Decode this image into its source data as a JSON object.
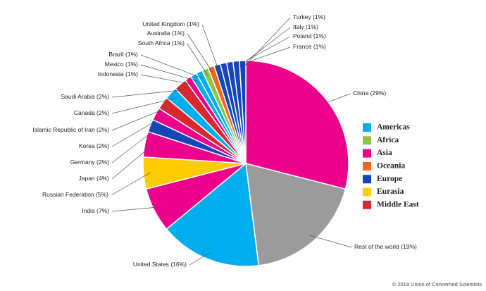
{
  "chart_data": {
    "type": "pie",
    "categories": [
      "China",
      "Rest of the world",
      "United States",
      "India",
      "Russian Federation",
      "Japan",
      "Germany",
      "Korea",
      "Islamic Republic of Iran",
      "Canada",
      "Saudi Arabia",
      "Indonesia",
      "Mexico",
      "Brazil",
      "South Africa",
      "Australia",
      "United Kingdom",
      "France",
      "Poland",
      "Italy",
      "Turkey"
    ],
    "values": [
      29,
      19,
      16,
      7,
      5,
      4,
      2,
      2,
      2,
      2,
      2,
      1,
      1,
      1,
      1,
      1,
      1,
      1,
      1,
      1,
      1
    ],
    "value_labels": [
      "(29%)",
      "(19%)",
      "(16%)",
      "(7%)",
      "(5%)",
      "(4%)",
      "(2%)",
      "(2%)",
      "(2%)",
      "(2%)",
      "(2%)",
      "(1%)",
      "(1%)",
      "(1%)",
      "(1%)",
      "(1%)",
      "(1%)",
      "(1%)",
      "(1%)",
      "(1%)",
      "(1%)"
    ],
    "colors": [
      "#ec008c",
      "#9b9b9b",
      "#00aeef",
      "#ec008c",
      "#ffcc00",
      "#ec008c",
      "#1446b8",
      "#ec008c",
      "#d7282f",
      "#00aeef",
      "#d7282f",
      "#ec008c",
      "#00aeef",
      "#00aeef",
      "#8dc63f",
      "#f26522",
      "#1446b8",
      "#1446b8",
      "#1446b8",
      "#1446b8",
      "#1446b8"
    ],
    "legend": [
      {
        "name": "Americas",
        "color": "#00aeef"
      },
      {
        "name": "Africa",
        "color": "#8dc63f"
      },
      {
        "name": "Asia",
        "color": "#ec008c"
      },
      {
        "name": "Oceania",
        "color": "#f26522"
      },
      {
        "name": "Europe",
        "color": "#1446b8"
      },
      {
        "name": "Eurasia",
        "color": "#ffcc00"
      },
      {
        "name": "Middle East",
        "color": "#d7282f"
      }
    ],
    "credit": "© 2019 Union of Concerned Scientists"
  }
}
